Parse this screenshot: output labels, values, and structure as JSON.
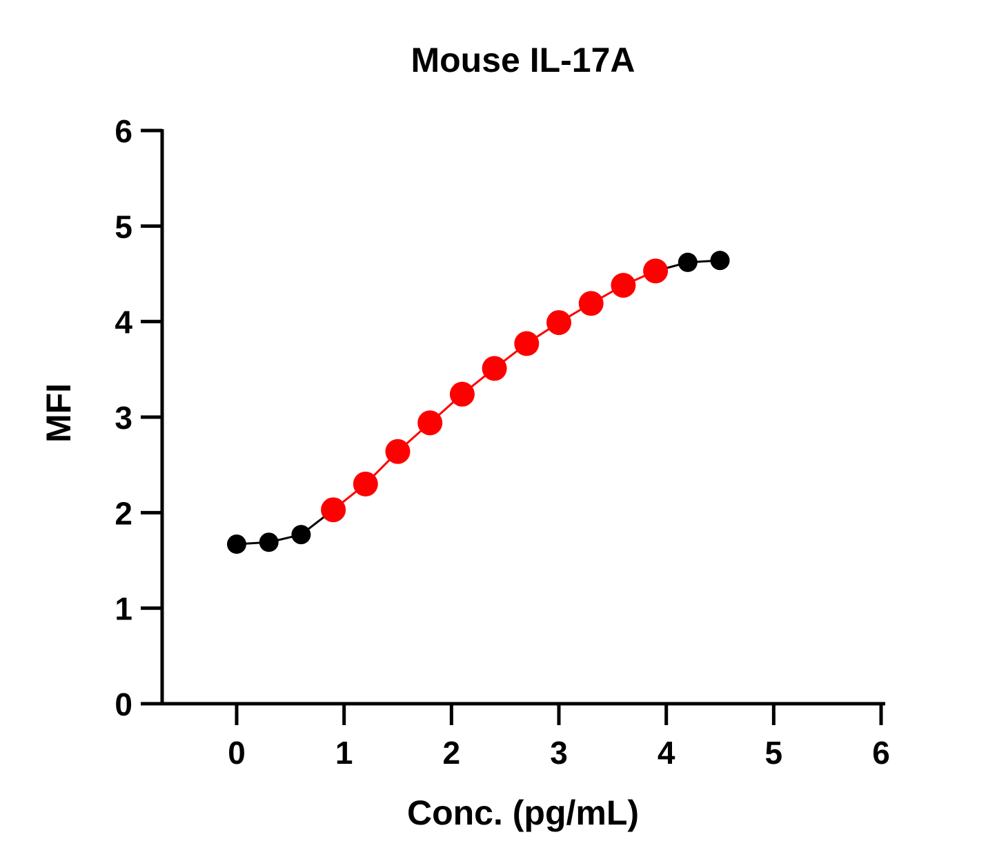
{
  "chart_data": {
    "type": "line",
    "title": "Mouse IL-17A",
    "xlabel": "Conc. (pg/mL)",
    "ylabel": "MFI",
    "xlim": [
      -0.7,
      6
    ],
    "ylim": [
      0,
      6
    ],
    "x_ticks": [
      "0",
      "1",
      "2",
      "3",
      "4",
      "5",
      "6"
    ],
    "y_ticks": [
      "0",
      "1",
      "2",
      "3",
      "4",
      "5",
      "6"
    ],
    "grid": false,
    "legend": "none",
    "series": [
      {
        "color": "#000000",
        "x": [
          0,
          0.3,
          0.6,
          0.9
        ],
        "y": [
          1.67,
          1.69,
          1.77,
          2.03
        ]
      },
      {
        "color": "#ff0000",
        "x": [
          0.9,
          1.2,
          1.5,
          1.8,
          2.1,
          2.4,
          2.7,
          3.0,
          3.3,
          3.6,
          3.9
        ],
        "y": [
          2.03,
          2.3,
          2.64,
          2.94,
          3.24,
          3.51,
          3.77,
          3.99,
          4.19,
          4.38,
          4.53
        ]
      },
      {
        "color": "#000000",
        "x": [
          3.9,
          4.2,
          4.5
        ],
        "y": [
          4.53,
          4.62,
          4.64
        ]
      }
    ],
    "points": [
      {
        "x": 0,
        "y": 1.67,
        "color": "#000000"
      },
      {
        "x": 0.3,
        "y": 1.69,
        "color": "#000000"
      },
      {
        "x": 0.6,
        "y": 1.77,
        "color": "#000000"
      },
      {
        "x": 0.9,
        "y": 2.03,
        "color": "#ff0000"
      },
      {
        "x": 1.2,
        "y": 2.3,
        "color": "#ff0000"
      },
      {
        "x": 1.5,
        "y": 2.64,
        "color": "#ff0000"
      },
      {
        "x": 1.8,
        "y": 2.94,
        "color": "#ff0000"
      },
      {
        "x": 2.1,
        "y": 3.24,
        "color": "#ff0000"
      },
      {
        "x": 2.4,
        "y": 3.51,
        "color": "#ff0000"
      },
      {
        "x": 2.7,
        "y": 3.77,
        "color": "#ff0000"
      },
      {
        "x": 3.0,
        "y": 3.99,
        "color": "#ff0000"
      },
      {
        "x": 3.3,
        "y": 4.19,
        "color": "#ff0000"
      },
      {
        "x": 3.6,
        "y": 4.38,
        "color": "#ff0000"
      },
      {
        "x": 3.9,
        "y": 4.53,
        "color": "#ff0000"
      },
      {
        "x": 4.2,
        "y": 4.62,
        "color": "#000000"
      },
      {
        "x": 4.5,
        "y": 4.64,
        "color": "#000000"
      }
    ]
  }
}
